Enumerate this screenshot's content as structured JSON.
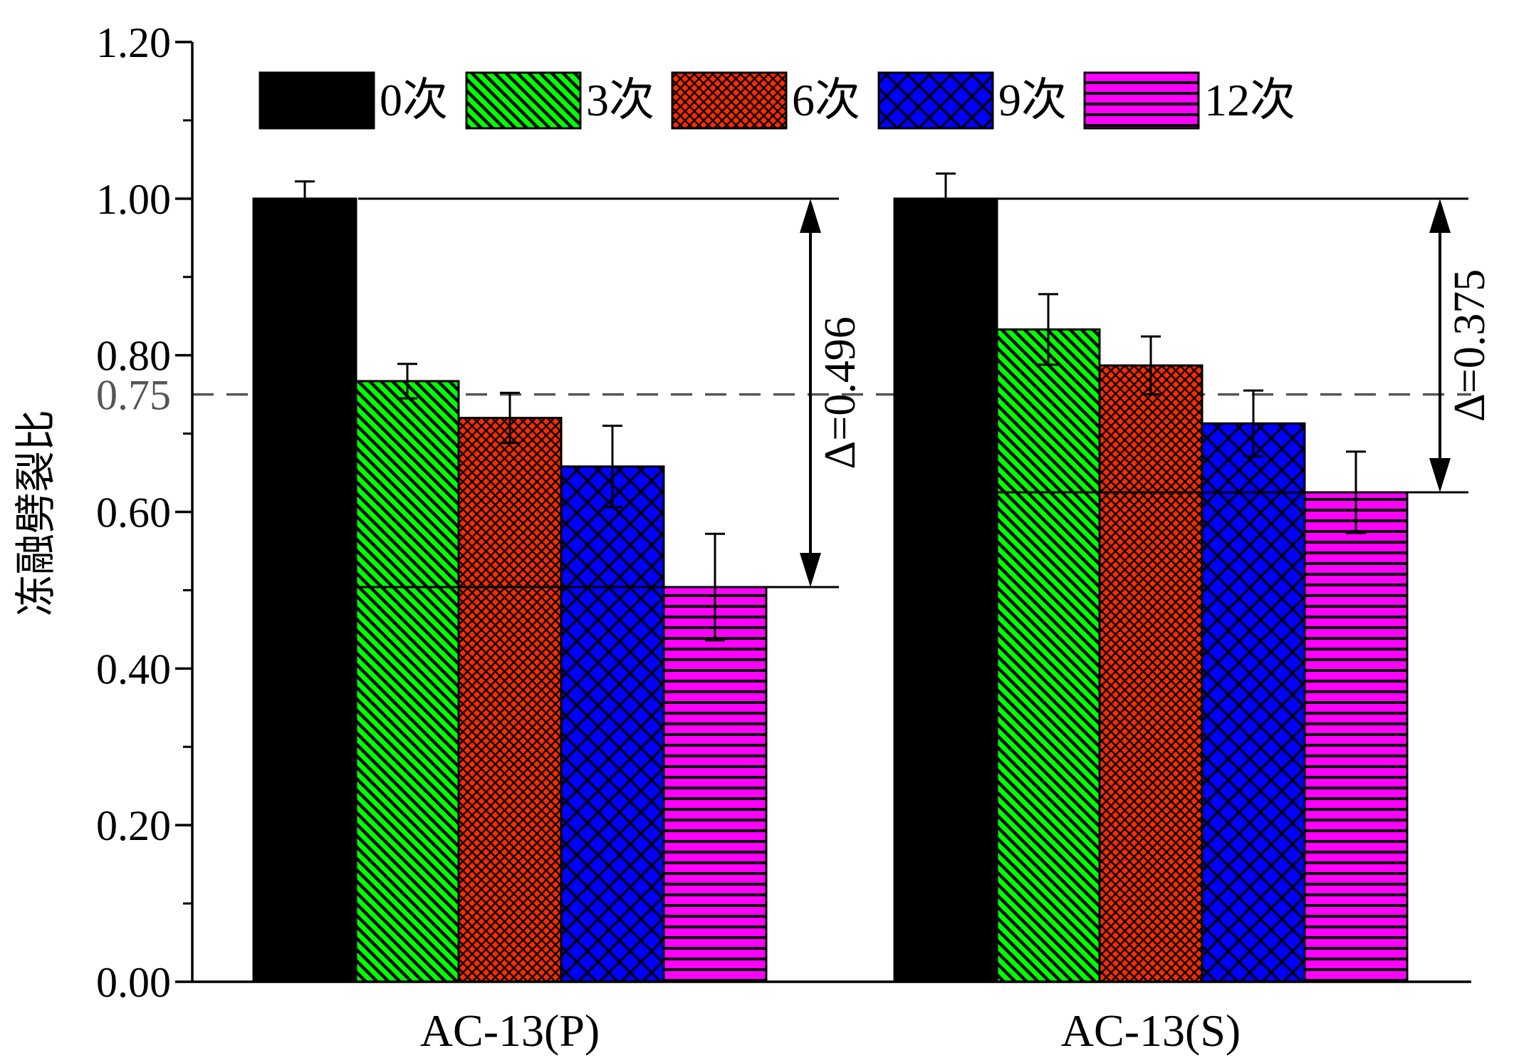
{
  "chart_data": {
    "type": "bar",
    "ylabel": "冻融劈裂比",
    "ylim": [
      0,
      1.2
    ],
    "yticks": [
      "0.00",
      "0.20",
      "0.40",
      "0.60",
      "0.80",
      "1.00",
      "1.20"
    ],
    "categories": [
      "AC-13(P)",
      "AC-13(S)"
    ],
    "legend_position": "top",
    "series": [
      {
        "name": "0次",
        "values": [
          1.0,
          1.0
        ],
        "errors": [
          0.022,
          0.032
        ],
        "color": "#000000",
        "pattern": "solid"
      },
      {
        "name": "3次",
        "values": [
          0.767,
          0.833
        ],
        "errors": [
          0.022,
          0.045
        ],
        "color": "#00ff00",
        "pattern": "diagonal"
      },
      {
        "name": "6次",
        "values": [
          0.72,
          0.787
        ],
        "errors": [
          0.032,
          0.037
        ],
        "color": "#ff2a00",
        "pattern": "fine-cross"
      },
      {
        "name": "9次",
        "values": [
          0.658,
          0.713
        ],
        "errors": [
          0.052,
          0.042
        ],
        "color": "#0000ff",
        "pattern": "cross"
      },
      {
        "name": "12次",
        "values": [
          0.504,
          0.625
        ],
        "errors": [
          0.068,
          0.052
        ],
        "color": "#ff00ff",
        "pattern": "horizontal"
      }
    ],
    "reference_line": {
      "value": 0.75,
      "label": "0.75"
    },
    "annotations": [
      {
        "label": "Δ=0.496",
        "from": 1.0,
        "to": 0.504
      },
      {
        "label": "Δ=0.375",
        "from": 1.0,
        "to": 0.625
      }
    ]
  }
}
